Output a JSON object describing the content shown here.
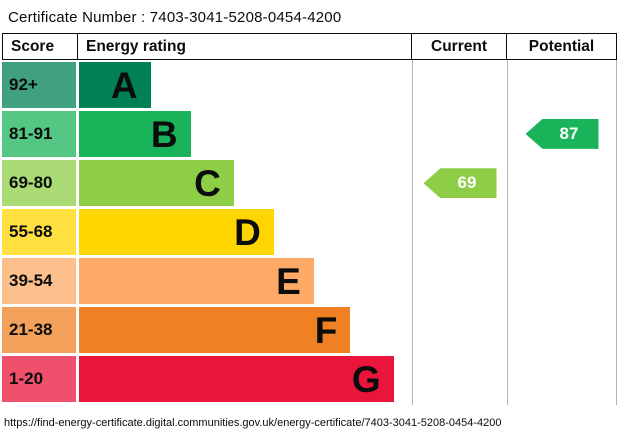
{
  "header": {
    "certificate_label": "Certificate Number :",
    "certificate_number": "7403-3041-5208-0454-4200"
  },
  "table": {
    "headers": {
      "score": "Score",
      "rating": "Energy rating",
      "current": "Current",
      "potential": "Potential"
    }
  },
  "chart_data": {
    "type": "bar",
    "title": "Energy rating",
    "categories": [
      "A",
      "B",
      "C",
      "D",
      "E",
      "F",
      "G"
    ],
    "bands": [
      {
        "letter": "A",
        "score": "92+",
        "color": "#008054",
        "score_color": "#40a07f",
        "width_pct": 21.5
      },
      {
        "letter": "B",
        "score": "81-91",
        "color": "#19b459",
        "score_color": "#53c783",
        "width_pct": 33.5
      },
      {
        "letter": "C",
        "score": "69-80",
        "color": "#8dce46",
        "score_color": "#aada74",
        "width_pct": 46.5
      },
      {
        "letter": "D",
        "score": "55-68",
        "color": "#ffd500",
        "score_color": "#ffe040",
        "width_pct": 58.5
      },
      {
        "letter": "E",
        "score": "39-54",
        "color": "#fcaa65",
        "score_color": "#fdbf8c",
        "width_pct": 70.5
      },
      {
        "letter": "F",
        "score": "21-38",
        "color": "#ef8023",
        "score_color": "#f3a05a",
        "width_pct": 81.5
      },
      {
        "letter": "G",
        "score": "1-20",
        "color": "#e9153b",
        "score_color": "#ef506c",
        "width_pct": 94.5
      }
    ],
    "current": {
      "label": "Current",
      "value": "69",
      "band": "C",
      "row_index": 2,
      "color": "#8dce46"
    },
    "potential": {
      "label": "Potential",
      "value": "87",
      "band": "B",
      "row_index": 1,
      "color": "#19b459"
    }
  },
  "footer": {
    "url": "https://find-energy-certificate.digital.communities.gov.uk/energy-certificate/7403-3041-5208-0454-4200"
  }
}
